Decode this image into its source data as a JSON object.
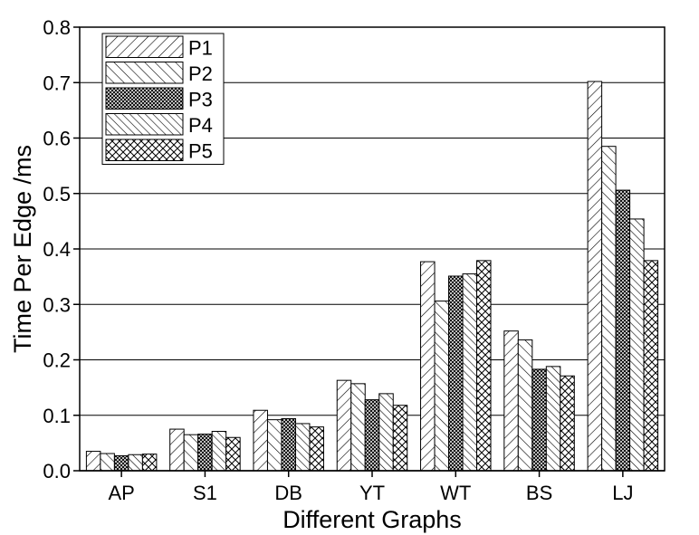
{
  "chart_data": {
    "type": "bar",
    "xlabel": "Different Graphs",
    "ylabel": "Time Per Edge /ms",
    "ylim": [
      0,
      0.8
    ],
    "yticks": [
      "0.0",
      "0.1",
      "0.2",
      "0.3",
      "0.4",
      "0.5",
      "0.6",
      "0.7",
      "0.8"
    ],
    "grid": "horizontal",
    "legend_position": "top-left",
    "categories": [
      "AP",
      "S1",
      "DB",
      "YT",
      "WT",
      "BS",
      "LJ"
    ],
    "series": [
      {
        "name": "P1",
        "pattern": "hatch-forward",
        "values": [
          0.035,
          0.075,
          0.109,
          0.163,
          0.377,
          0.252,
          0.702
        ]
      },
      {
        "name": "P2",
        "pattern": "hatch-back",
        "values": [
          0.031,
          0.065,
          0.092,
          0.157,
          0.306,
          0.236,
          0.585
        ]
      },
      {
        "name": "P3",
        "pattern": "crosshatch-dense",
        "values": [
          0.027,
          0.066,
          0.094,
          0.128,
          0.351,
          0.183,
          0.506
        ]
      },
      {
        "name": "P4",
        "pattern": "hatch-back-fine",
        "values": [
          0.029,
          0.071,
          0.085,
          0.139,
          0.355,
          0.188,
          0.454
        ]
      },
      {
        "name": "P5",
        "pattern": "crosshatch",
        "values": [
          0.03,
          0.06,
          0.079,
          0.118,
          0.379,
          0.171,
          0.379
        ]
      }
    ]
  }
}
